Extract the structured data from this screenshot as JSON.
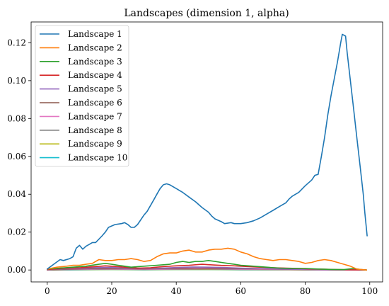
{
  "chart_data": {
    "type": "line",
    "title": "Landscapes (dimension 1, alpha)",
    "xlabel": "",
    "ylabel": "",
    "xlim": [
      -5,
      104
    ],
    "ylim": [
      -0.0063,
      0.131
    ],
    "x_ticks": [
      0,
      20,
      40,
      60,
      80,
      100
    ],
    "x_tick_labels": [
      "0",
      "20",
      "40",
      "60",
      "80",
      "100"
    ],
    "y_ticks": [
      0.0,
      0.02,
      0.04,
      0.06,
      0.08,
      0.1,
      0.12
    ],
    "y_tick_labels": [
      "0.00",
      "0.02",
      "0.04",
      "0.06",
      "0.08",
      "0.10",
      "0.12"
    ],
    "grid": false,
    "legend_position": "upper-left",
    "series": [
      {
        "name": "Landscape 1",
        "color": "#1f77b4",
        "points": [
          [
            0,
            0.0005
          ],
          [
            2,
            0.003
          ],
          [
            4,
            0.0055
          ],
          [
            5,
            0.005
          ],
          [
            7,
            0.006
          ],
          [
            8,
            0.007
          ],
          [
            9,
            0.0115
          ],
          [
            10,
            0.013
          ],
          [
            11,
            0.011
          ],
          [
            12,
            0.0125
          ],
          [
            13,
            0.0135
          ],
          [
            14,
            0.0145
          ],
          [
            15,
            0.0145
          ],
          [
            17,
            0.018
          ],
          [
            18,
            0.02
          ],
          [
            19,
            0.0225
          ],
          [
            21,
            0.024
          ],
          [
            23,
            0.0245
          ],
          [
            24,
            0.025
          ],
          [
            25,
            0.024
          ],
          [
            26,
            0.0225
          ],
          [
            27,
            0.0225
          ],
          [
            28,
            0.024
          ],
          [
            30,
            0.029
          ],
          [
            31,
            0.031
          ],
          [
            33,
            0.037
          ],
          [
            34,
            0.04
          ],
          [
            35,
            0.043
          ],
          [
            36,
            0.045
          ],
          [
            37,
            0.0455
          ],
          [
            38,
            0.045
          ],
          [
            40,
            0.043
          ],
          [
            42,
            0.041
          ],
          [
            44,
            0.0385
          ],
          [
            46,
            0.036
          ],
          [
            48,
            0.033
          ],
          [
            50,
            0.0305
          ],
          [
            51,
            0.0285
          ],
          [
            52,
            0.027
          ],
          [
            54,
            0.0255
          ],
          [
            55,
            0.0245
          ],
          [
            57,
            0.025
          ],
          [
            58,
            0.0245
          ],
          [
            60,
            0.0245
          ],
          [
            62,
            0.025
          ],
          [
            64,
            0.026
          ],
          [
            66,
            0.0275
          ],
          [
            68,
            0.0295
          ],
          [
            70,
            0.0315
          ],
          [
            72,
            0.0335
          ],
          [
            74,
            0.0355
          ],
          [
            75,
            0.0375
          ],
          [
            76,
            0.039
          ],
          [
            78,
            0.041
          ],
          [
            80,
            0.0445
          ],
          [
            82,
            0.0475
          ],
          [
            83,
            0.05
          ],
          [
            84,
            0.0505
          ],
          [
            85,
            0.06
          ],
          [
            86,
            0.07
          ],
          [
            87,
            0.082
          ],
          [
            88,
            0.092
          ],
          [
            90,
            0.11
          ],
          [
            91,
            0.12
          ],
          [
            91.5,
            0.1245
          ],
          [
            92.5,
            0.1235
          ],
          [
            93,
            0.115
          ],
          [
            94,
            0.1
          ],
          [
            95,
            0.085
          ],
          [
            96,
            0.07
          ],
          [
            97,
            0.055
          ],
          [
            98,
            0.04
          ],
          [
            98.5,
            0.03
          ],
          [
            99.2,
            0.018
          ]
        ]
      },
      {
        "name": "Landscape 2",
        "color": "#ff7f0e",
        "points": [
          [
            0,
            0.0005
          ],
          [
            3,
            0.0015
          ],
          [
            6,
            0.002
          ],
          [
            8,
            0.0025
          ],
          [
            10,
            0.0025
          ],
          [
            12,
            0.003
          ],
          [
            14,
            0.0035
          ],
          [
            16,
            0.0055
          ],
          [
            18,
            0.005
          ],
          [
            20,
            0.005
          ],
          [
            22,
            0.0055
          ],
          [
            24,
            0.0055
          ],
          [
            26,
            0.006
          ],
          [
            28,
            0.0055
          ],
          [
            30,
            0.0045
          ],
          [
            32,
            0.005
          ],
          [
            34,
            0.007
          ],
          [
            36,
            0.0085
          ],
          [
            38,
            0.009
          ],
          [
            40,
            0.009
          ],
          [
            42,
            0.01
          ],
          [
            44,
            0.0105
          ],
          [
            46,
            0.0095
          ],
          [
            48,
            0.0095
          ],
          [
            50,
            0.0105
          ],
          [
            52,
            0.011
          ],
          [
            54,
            0.011
          ],
          [
            56,
            0.0115
          ],
          [
            58,
            0.011
          ],
          [
            60,
            0.0095
          ],
          [
            62,
            0.0085
          ],
          [
            64,
            0.007
          ],
          [
            66,
            0.006
          ],
          [
            68,
            0.0055
          ],
          [
            70,
            0.005
          ],
          [
            72,
            0.0055
          ],
          [
            74,
            0.0055
          ],
          [
            76,
            0.005
          ],
          [
            78,
            0.0045
          ],
          [
            80,
            0.0035
          ],
          [
            82,
            0.004
          ],
          [
            84,
            0.005
          ],
          [
            86,
            0.0055
          ],
          [
            88,
            0.005
          ],
          [
            90,
            0.004
          ],
          [
            92,
            0.003
          ],
          [
            94,
            0.002
          ],
          [
            96,
            0.0005
          ],
          [
            99,
            0.0
          ]
        ]
      },
      {
        "name": "Landscape 3",
        "color": "#2ca02c",
        "points": [
          [
            0,
            0.0005
          ],
          [
            4,
            0.001
          ],
          [
            8,
            0.0015
          ],
          [
            12,
            0.002
          ],
          [
            16,
            0.003
          ],
          [
            18,
            0.0035
          ],
          [
            20,
            0.003
          ],
          [
            22,
            0.0025
          ],
          [
            24,
            0.002
          ],
          [
            26,
            0.0015
          ],
          [
            30,
            0.002
          ],
          [
            34,
            0.0025
          ],
          [
            38,
            0.003
          ],
          [
            40,
            0.004
          ],
          [
            42,
            0.0045
          ],
          [
            44,
            0.004
          ],
          [
            46,
            0.0045
          ],
          [
            48,
            0.0045
          ],
          [
            50,
            0.005
          ],
          [
            52,
            0.0045
          ],
          [
            54,
            0.004
          ],
          [
            56,
            0.0035
          ],
          [
            58,
            0.003
          ],
          [
            60,
            0.0025
          ],
          [
            64,
            0.002
          ],
          [
            68,
            0.0015
          ],
          [
            72,
            0.001
          ],
          [
            76,
            0.0008
          ],
          [
            80,
            0.0008
          ],
          [
            84,
            0.0005
          ],
          [
            88,
            0.0003
          ],
          [
            92,
            0.0002
          ],
          [
            95,
            0.0008
          ],
          [
            97,
            0.0003
          ],
          [
            99,
            0.0
          ]
        ]
      },
      {
        "name": "Landscape 4",
        "color": "#d62728",
        "points": [
          [
            0,
            0.0003
          ],
          [
            5,
            0.0008
          ],
          [
            10,
            0.0012
          ],
          [
            15,
            0.0018
          ],
          [
            18,
            0.0022
          ],
          [
            20,
            0.002
          ],
          [
            24,
            0.0015
          ],
          [
            28,
            0.001
          ],
          [
            32,
            0.0012
          ],
          [
            36,
            0.0018
          ],
          [
            40,
            0.0022
          ],
          [
            44,
            0.0025
          ],
          [
            48,
            0.003
          ],
          [
            50,
            0.0028
          ],
          [
            54,
            0.0024
          ],
          [
            58,
            0.0022
          ],
          [
            62,
            0.0018
          ],
          [
            66,
            0.0015
          ],
          [
            70,
            0.0012
          ],
          [
            74,
            0.001
          ],
          [
            78,
            0.0008
          ],
          [
            82,
            0.0005
          ],
          [
            86,
            0.0004
          ],
          [
            90,
            0.0002
          ],
          [
            95,
            0.0001
          ],
          [
            99,
            0.0
          ]
        ]
      },
      {
        "name": "Landscape 5",
        "color": "#9467bd",
        "points": [
          [
            0,
            0.0002
          ],
          [
            5,
            0.0006
          ],
          [
            10,
            0.0009
          ],
          [
            15,
            0.0013
          ],
          [
            20,
            0.0014
          ],
          [
            24,
            0.001
          ],
          [
            30,
            0.0008
          ],
          [
            35,
            0.001
          ],
          [
            40,
            0.0013
          ],
          [
            45,
            0.0016
          ],
          [
            50,
            0.0015
          ],
          [
            55,
            0.0013
          ],
          [
            60,
            0.001
          ],
          [
            65,
            0.0008
          ],
          [
            70,
            0.0006
          ],
          [
            80,
            0.0003
          ],
          [
            90,
            0.0001
          ],
          [
            99,
            0.0
          ]
        ]
      },
      {
        "name": "Landscape 6",
        "color": "#8c564b",
        "points": [
          [
            0,
            0.0001
          ],
          [
            8,
            0.0005
          ],
          [
            16,
            0.0009
          ],
          [
            22,
            0.0008
          ],
          [
            30,
            0.0006
          ],
          [
            38,
            0.0008
          ],
          [
            46,
            0.001
          ],
          [
            54,
            0.0009
          ],
          [
            62,
            0.0007
          ],
          [
            70,
            0.0005
          ],
          [
            80,
            0.0002
          ],
          [
            90,
            0.0001
          ],
          [
            99,
            0.0
          ]
        ]
      },
      {
        "name": "Landscape 7",
        "color": "#e377c2",
        "points": [
          [
            0,
            0.0001
          ],
          [
            8,
            0.0004
          ],
          [
            16,
            0.0006
          ],
          [
            24,
            0.0005
          ],
          [
            32,
            0.0004
          ],
          [
            40,
            0.0006
          ],
          [
            48,
            0.0007
          ],
          [
            56,
            0.0006
          ],
          [
            64,
            0.0004
          ],
          [
            72,
            0.0003
          ],
          [
            85,
            0.0001
          ],
          [
            99,
            0.0
          ]
        ]
      },
      {
        "name": "Landscape 8",
        "color": "#7f7f7f",
        "points": [
          [
            0,
            0.0
          ],
          [
            10,
            0.0003
          ],
          [
            20,
            0.0004
          ],
          [
            30,
            0.0003
          ],
          [
            40,
            0.0004
          ],
          [
            50,
            0.0005
          ],
          [
            60,
            0.0003
          ],
          [
            70,
            0.0002
          ],
          [
            85,
            0.0001
          ],
          [
            99,
            0.0
          ]
        ]
      },
      {
        "name": "Landscape 9",
        "color": "#bcbd22",
        "points": [
          [
            0,
            0.0
          ],
          [
            10,
            0.0002
          ],
          [
            20,
            0.0003
          ],
          [
            30,
            0.0002
          ],
          [
            40,
            0.0003
          ],
          [
            50,
            0.0003
          ],
          [
            60,
            0.0002
          ],
          [
            75,
            0.0001
          ],
          [
            90,
            0.0
          ],
          [
            99,
            0.0
          ]
        ]
      },
      {
        "name": "Landscape 10",
        "color": "#17becf",
        "points": [
          [
            0,
            0.0
          ],
          [
            10,
            0.0001
          ],
          [
            20,
            0.0002
          ],
          [
            30,
            0.0001
          ],
          [
            40,
            0.0002
          ],
          [
            50,
            0.0002
          ],
          [
            60,
            0.0001
          ],
          [
            75,
            0.0001
          ],
          [
            90,
            0.0
          ],
          [
            99,
            0.0
          ]
        ]
      }
    ]
  }
}
